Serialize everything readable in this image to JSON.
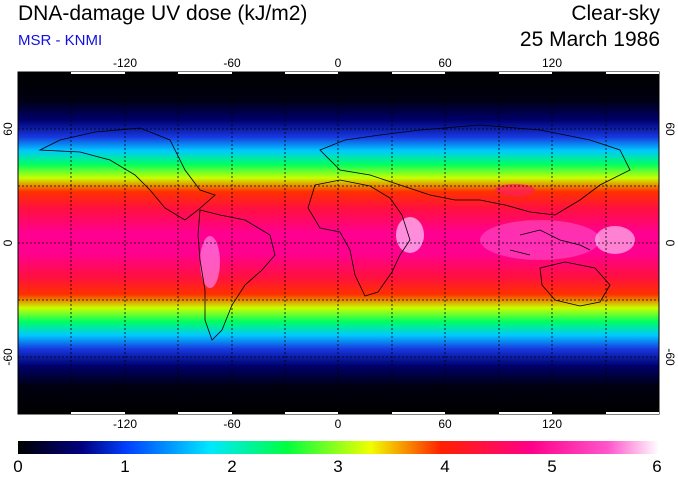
{
  "header": {
    "title": "DNA-damage UV dose (kJ/m2)",
    "subtitle": "MSR - KNMI",
    "sky_condition": "Clear-sky",
    "date": "25 March 1986"
  },
  "map": {
    "projection": "equirectangular",
    "lon_range": [
      -180,
      180
    ],
    "lat_range": [
      -90,
      90
    ],
    "lon_ticks": [
      "-120",
      "-60",
      "0",
      "60",
      "120"
    ],
    "lat_ticks": [
      "60",
      "0",
      "-60"
    ],
    "gridlines": "dashed, every 30 degrees",
    "colormap_stops": [
      "#000000",
      "#0000a0",
      "#2a6cff",
      "#00e8ff",
      "#00ff4a",
      "#f0ff00",
      "#ff2000",
      "#ff0088",
      "#ff55cc",
      "#ffffff"
    ]
  },
  "colorbar": {
    "min": 0,
    "max": 6,
    "labels": [
      "0",
      "1",
      "2",
      "3",
      "4",
      "5",
      "6"
    ]
  }
}
